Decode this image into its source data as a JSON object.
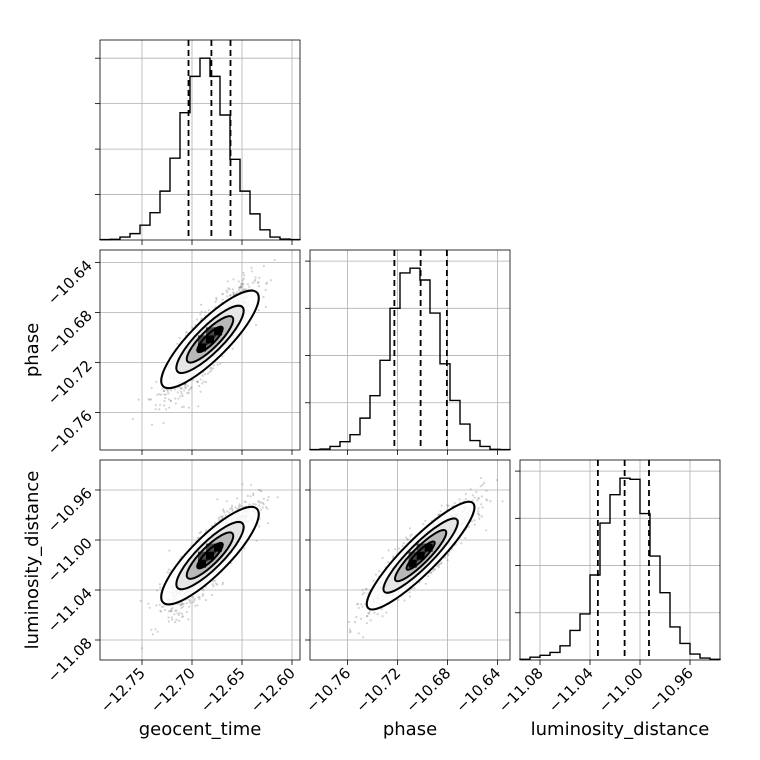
{
  "chart_data": {
    "type": "corner",
    "parameters": [
      "geocent_time",
      "phase",
      "luminosity_distance"
    ],
    "axes": {
      "geocent_time": {
        "range": [
          -12.792,
          -12.592
        ],
        "ticks": [
          -12.75,
          -12.7,
          -12.65,
          -12.6
        ],
        "tick_labels": [
          "−12.75",
          "−12.70",
          "−12.65",
          "−12.60"
        ]
      },
      "phase": {
        "range": [
          -10.79,
          -10.63
        ],
        "ticks": [
          -10.76,
          -10.72,
          -10.68,
          -10.64
        ],
        "tick_labels": [
          "−10.76",
          "−10.72",
          "−10.68",
          "−10.64"
        ]
      },
      "luminosity_distance": {
        "range": [
          -11.096,
          -10.936
        ],
        "ticks": [
          -11.08,
          -11.04,
          -11.0,
          -10.96
        ],
        "tick_labels": [
          "−11.08",
          "−11.04",
          "−11.00",
          "−10.96"
        ]
      }
    },
    "marginals": [
      {
        "parameter": "geocent_time",
        "bin_edges": [
          -12.792,
          -12.782,
          -12.772,
          -12.762,
          -12.752,
          -12.742,
          -12.732,
          -12.722,
          -12.712,
          -12.702,
          -12.692,
          -12.682,
          -12.672,
          -12.662,
          -12.652,
          -12.642,
          -12.632,
          -12.622,
          -12.612,
          -12.602,
          -12.592
        ],
        "counts": [
          0.2,
          0.3,
          1.3,
          2.8,
          6.5,
          12.0,
          21.5,
          36.0,
          56.0,
          72.0,
          80.0,
          72.0,
          55.0,
          35.5,
          21.5,
          11.5,
          4.5,
          1.3,
          0.4,
          0.2
        ],
        "quantiles": [
          -12.7035,
          -12.6806,
          -12.6615
        ]
      },
      {
        "parameter": "phase",
        "bin_edges": [
          -10.79,
          -10.782,
          -10.774,
          -10.766,
          -10.758,
          -10.75,
          -10.742,
          -10.734,
          -10.726,
          -10.718,
          -10.71,
          -10.702,
          -10.694,
          -10.686,
          -10.678,
          -10.67,
          -10.662,
          -10.654,
          -10.646,
          -10.638,
          -10.63
        ],
        "counts": [
          0.2,
          0.4,
          1.5,
          3.5,
          6.5,
          13.5,
          23.0,
          38.0,
          60.0,
          75.0,
          77.0,
          72.0,
          58.0,
          36.5,
          21.0,
          11.0,
          4.0,
          1.5,
          0.3,
          0.2
        ],
        "quantiles": [
          -10.7225,
          -10.7015,
          -10.6805
        ]
      },
      {
        "parameter": "luminosity_distance",
        "bin_edges": [
          -11.096,
          -11.088,
          -11.08,
          -11.072,
          -11.064,
          -11.056,
          -11.048,
          -11.04,
          -11.032,
          -11.024,
          -11.016,
          -11.008,
          -11.0,
          -10.992,
          -10.984,
          -10.976,
          -10.968,
          -10.96,
          -10.952,
          -10.944,
          -10.936
        ],
        "counts": [
          0.3,
          1.2,
          2.0,
          3.2,
          6.0,
          12.5,
          19.5,
          36.0,
          58.0,
          70.0,
          77.0,
          76.5,
          62.0,
          44.0,
          28.5,
          14.0,
          7.0,
          2.5,
          0.8,
          0.3
        ],
        "quantiles": [
          -11.0337,
          -11.0123,
          -10.9928
        ]
      }
    ],
    "joint": [
      {
        "x": "geocent_time",
        "y": "phase",
        "center": [
          -12.682,
          -10.7015
        ],
        "sigma": [
          0.0205,
          0.0205
        ],
        "correlation": 0.85
      },
      {
        "x": "geocent_time",
        "y": "luminosity_distance",
        "center": [
          -12.682,
          -11.0125
        ],
        "sigma": [
          0.0205,
          0.0205
        ],
        "correlation": 0.85
      },
      {
        "x": "phase",
        "y": "luminosity_distance",
        "center": [
          -10.7015,
          -11.0125
        ],
        "sigma": [
          0.0205,
          0.0205
        ],
        "correlation": 0.9
      }
    ],
    "colors": {
      "scatter": "#808080",
      "density": "#000000",
      "lines": "#000000",
      "grid": "#b0b0b0"
    },
    "grid": true
  }
}
